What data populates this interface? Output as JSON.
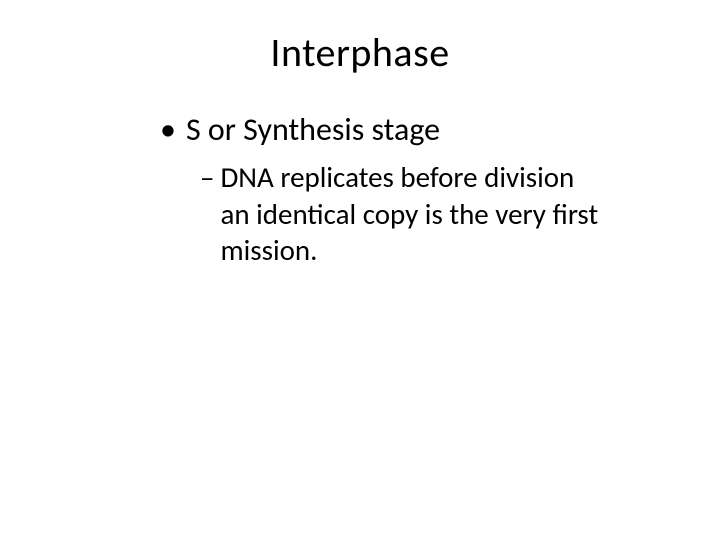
{
  "slide": {
    "title": "Interphase",
    "background_color": "#ffffff",
    "text_color": "#000000",
    "title_fontsize": 40,
    "body_fontsize_l1": 32,
    "body_fontsize_l2": 29,
    "bullets": [
      {
        "level": 1,
        "marker": "•",
        "text": "S or Synthesis stage"
      },
      {
        "level": 2,
        "marker": "–",
        "text": "DNA replicates before division an identical copy is the very first mission."
      }
    ]
  }
}
